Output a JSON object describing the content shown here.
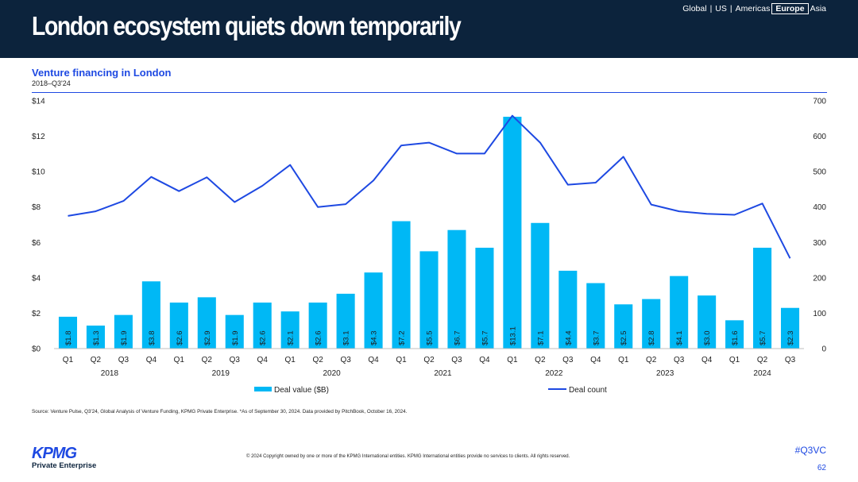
{
  "header": {
    "title": "London ecosystem quiets down temporarily",
    "nav": {
      "global": "Global",
      "us": "US",
      "americas": "Americas",
      "europe": "Europe",
      "asia": "Asia",
      "separator": "|"
    }
  },
  "chart_data": {
    "type": "bar",
    "title": "Venture financing in London",
    "subtitle": "2018–Q3'24",
    "categories": [
      "Q1",
      "Q2",
      "Q3",
      "Q4",
      "Q1",
      "Q2",
      "Q3",
      "Q4",
      "Q1",
      "Q2",
      "Q3",
      "Q4",
      "Q1",
      "Q2",
      "Q3",
      "Q4",
      "Q1",
      "Q2",
      "Q3",
      "Q4",
      "Q1",
      "Q2",
      "Q3",
      "Q4",
      "Q1",
      "Q2",
      "Q3"
    ],
    "years": [
      {
        "label": "2018",
        "span": 4
      },
      {
        "label": "2019",
        "span": 4
      },
      {
        "label": "2020",
        "span": 4
      },
      {
        "label": "2021",
        "span": 4
      },
      {
        "label": "2022",
        "span": 4
      },
      {
        "label": "2023",
        "span": 4
      },
      {
        "label": "2024",
        "span": 3
      }
    ],
    "series": [
      {
        "name": "Deal value ($B)",
        "type": "bar",
        "axis": "left",
        "color": "#00b8f5",
        "values": [
          1.8,
          1.3,
          1.9,
          3.8,
          2.6,
          2.9,
          1.9,
          2.6,
          2.1,
          2.6,
          3.1,
          4.3,
          7.2,
          5.5,
          6.7,
          5.7,
          13.1,
          7.1,
          4.4,
          3.7,
          2.5,
          2.8,
          4.1,
          3.0,
          1.6,
          5.7,
          2.3
        ],
        "labels": [
          "$1.8",
          "$1.3",
          "$1.9",
          "$3.8",
          "$2.6",
          "$2.9",
          "$1.9",
          "$2.6",
          "$2.1",
          "$2.6",
          "$3.1",
          "$4.3",
          "$7.2",
          "$5.5",
          "$6.7",
          "$5.7",
          "$13.1",
          "$7.1",
          "$4.4",
          "$3.7",
          "$2.5",
          "$2.8",
          "$4.1",
          "$3.0",
          "$1.6",
          "$5.7",
          "$2.3"
        ]
      },
      {
        "name": "Deal count",
        "type": "line",
        "axis": "right",
        "color": "#1e49e2",
        "values": [
          375,
          388,
          417,
          485,
          445,
          484,
          414,
          460,
          519,
          400,
          408,
          475,
          574,
          582,
          551,
          551,
          658,
          582,
          463,
          469,
          542,
          407,
          388,
          381,
          378,
          410,
          255
        ]
      }
    ],
    "y_left": {
      "min": 0,
      "max": 14,
      "ticks": [
        0,
        2,
        4,
        6,
        8,
        10,
        12,
        14
      ],
      "tick_labels": [
        "$0",
        "$2",
        "$4",
        "$6",
        "$8",
        "$10",
        "$12",
        "$14"
      ]
    },
    "y_right": {
      "min": 0,
      "max": 700,
      "ticks": [
        0,
        100,
        200,
        300,
        400,
        500,
        600,
        700
      ],
      "tick_labels": [
        "0",
        "100",
        "200",
        "300",
        "400",
        "500",
        "600",
        "700"
      ]
    },
    "legend": {
      "position": "bottom"
    },
    "grid": false
  },
  "footer": {
    "source": "Source: Venture Pulse, Q3'24, Global Analysis of Venture Funding, KPMG Private Enterprise. *As of September 30, 2024. Data provided by PitchBook, October 16, 2024.",
    "copyright": "© 2024 Copyright owned by one or more of the KPMG International entities. KPMG International entities provide no services to clients. All rights reserved.",
    "hashtag": "#Q3VC",
    "page_number": "62",
    "logo_text": "KPMG",
    "logo_subtext": "Private Enterprise"
  },
  "colors": {
    "header_bg": "#0c233c",
    "accent": "#1e49e2",
    "bar": "#00b8f5"
  }
}
